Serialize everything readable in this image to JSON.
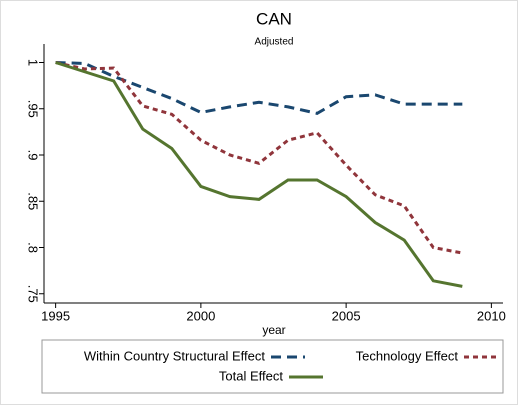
{
  "chart_data": {
    "type": "line",
    "title": "CAN",
    "subtitle": "Adjusted",
    "x_label": "year",
    "x": [
      1995,
      1996,
      1997,
      1998,
      1999,
      2000,
      2001,
      2002,
      2003,
      2004,
      2005,
      2006,
      2007,
      2008,
      2009
    ],
    "series": [
      {
        "name": "Within Country Structural Effect",
        "color": "#1a476f",
        "dash": "10 6",
        "values": [
          1,
          0.999,
          0.985,
          0.973,
          0.961,
          0.946,
          0.952,
          0.957,
          0.952,
          0.945,
          0.963,
          0.965,
          0.955,
          0.955,
          0.955
        ]
      },
      {
        "name": "Technology Effect",
        "color": "#90353b",
        "dash": "5 4",
        "values": [
          1,
          0.993,
          0.994,
          0.953,
          0.944,
          0.916,
          0.9,
          0.891,
          0.916,
          0.924,
          0.889,
          0.857,
          0.845,
          0.8,
          0.794
        ]
      },
      {
        "name": "Total Effect",
        "color": "#55752f",
        "dash": "none",
        "values": [
          1,
          0.99,
          0.98,
          0.928,
          0.907,
          0.866,
          0.855,
          0.852,
          0.873,
          0.873,
          0.855,
          0.827,
          0.808,
          0.764,
          0.758
        ]
      }
    ],
    "xlim": [
      1994.6,
      2010.4
    ],
    "xticks": [
      1995,
      2000,
      2005,
      2010
    ],
    "ylim": [
      0.74,
      1.02
    ],
    "yticks": [
      {
        "value": 0.75,
        "label": ".75"
      },
      {
        "value": 0.8,
        "label": ".8"
      },
      {
        "value": 0.85,
        "label": ".85"
      },
      {
        "value": 0.9,
        "label": ".9"
      },
      {
        "value": 0.95,
        "label": ".95"
      },
      1
    ]
  }
}
